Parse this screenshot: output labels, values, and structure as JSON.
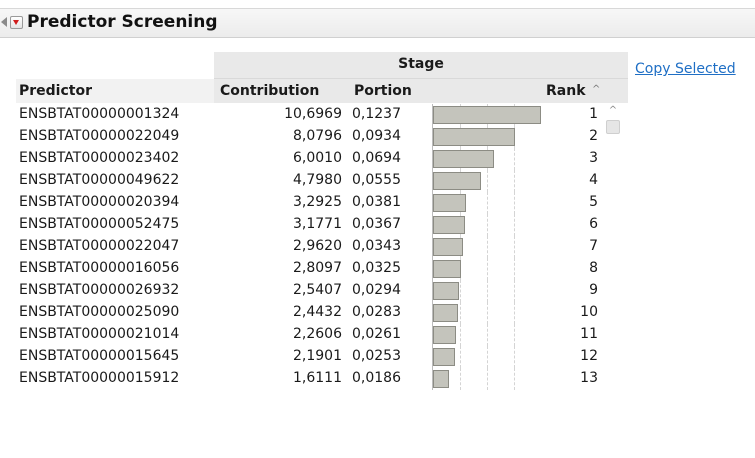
{
  "panel": {
    "title": "Predictor Screening",
    "copy_selected_label": "Copy Selected"
  },
  "table": {
    "group_header": "Stage",
    "columns": {
      "predictor": "Predictor",
      "contribution": "Contribution",
      "portion": "Portion",
      "rank": "Rank"
    },
    "sort_indicator": "^",
    "rows": [
      {
        "predictor": "ENSBTAT00000001324",
        "contribution": "10,6969",
        "portion": "0,1237",
        "portion_value": 0.1237,
        "rank": "1"
      },
      {
        "predictor": "ENSBTAT00000022049",
        "contribution": "8,0796",
        "portion": "0,0934",
        "portion_value": 0.0934,
        "rank": "2"
      },
      {
        "predictor": "ENSBTAT00000023402",
        "contribution": "6,0010",
        "portion": "0,0694",
        "portion_value": 0.0694,
        "rank": "3"
      },
      {
        "predictor": "ENSBTAT00000049622",
        "contribution": "4,7980",
        "portion": "0,0555",
        "portion_value": 0.0555,
        "rank": "4"
      },
      {
        "predictor": "ENSBTAT00000020394",
        "contribution": "3,2925",
        "portion": "0,0381",
        "portion_value": 0.0381,
        "rank": "5"
      },
      {
        "predictor": "ENSBTAT00000052475",
        "contribution": "3,1771",
        "portion": "0,0367",
        "portion_value": 0.0367,
        "rank": "6"
      },
      {
        "predictor": "ENSBTAT00000022047",
        "contribution": "2,9620",
        "portion": "0,0343",
        "portion_value": 0.0343,
        "rank": "7"
      },
      {
        "predictor": "ENSBTAT00000016056",
        "contribution": "2,8097",
        "portion": "0,0325",
        "portion_value": 0.0325,
        "rank": "8"
      },
      {
        "predictor": "ENSBTAT00000026932",
        "contribution": "2,5407",
        "portion": "0,0294",
        "portion_value": 0.0294,
        "rank": "9"
      },
      {
        "predictor": "ENSBTAT00000025090",
        "contribution": "2,4432",
        "portion": "0,0283",
        "portion_value": 0.0283,
        "rank": "10"
      },
      {
        "predictor": "ENSBTAT00000021014",
        "contribution": "2,2606",
        "portion": "0,0261",
        "portion_value": 0.0261,
        "rank": "11"
      },
      {
        "predictor": "ENSBTAT00000015645",
        "contribution": "2,1901",
        "portion": "0,0253",
        "portion_value": 0.0253,
        "rank": "12"
      },
      {
        "predictor": "ENSBTAT00000015912",
        "contribution": "1,6111",
        "portion": "0,0186",
        "portion_value": 0.0186,
        "rank": "13"
      }
    ]
  },
  "icons": {
    "disclosure": "disclosure-triangle-icon",
    "menu": "red-triangle-menu-icon",
    "scroll_up": "scroll-up-arrow-icon"
  },
  "colors": {
    "bar_fill": "#c4c4bc",
    "link": "#1f6fc5",
    "menu_triangle": "#d01c1c"
  }
}
